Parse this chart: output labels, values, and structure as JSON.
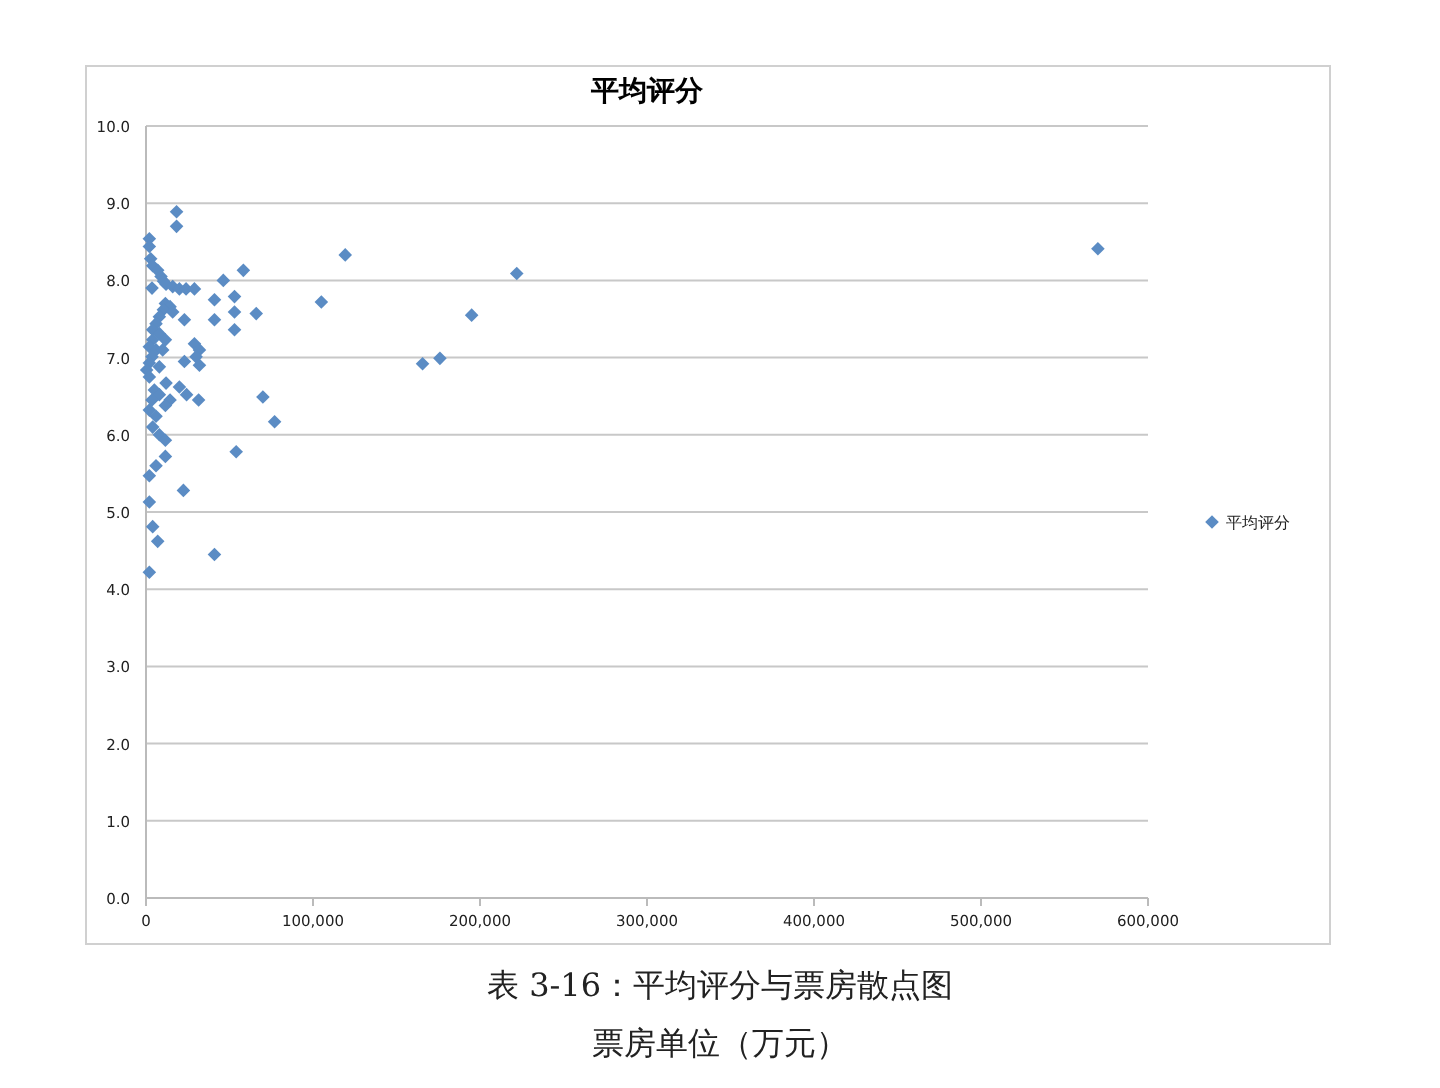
{
  "chart_data": {
    "type": "scatter",
    "title": "平均评分",
    "marker": "diamond",
    "grid": "y",
    "legend": "right",
    "annotations": [
      "表 3-16：平均评分与票房散点图",
      "票房单位（万元）"
    ],
    "xlim": [
      0,
      600000
    ],
    "ylim": [
      0,
      10
    ],
    "xticks": [
      0,
      {
        "value": 100000,
        "label": "100,000"
      },
      {
        "value": 200000,
        "label": "200,000"
      },
      {
        "value": 300000,
        "label": "300,000"
      },
      {
        "value": 400000,
        "label": "400,000"
      },
      {
        "value": 500000,
        "label": "500,000"
      },
      {
        "value": 600000,
        "label": "600,000"
      }
    ],
    "yticks": [
      {
        "value": 0,
        "label": "0.0"
      },
      {
        "value": 1,
        "label": "1.0"
      },
      {
        "value": 2,
        "label": "2.0"
      },
      {
        "value": 3,
        "label": "3.0"
      },
      {
        "value": 4,
        "label": "4.0"
      },
      {
        "value": 5,
        "label": "5.0"
      },
      {
        "value": 6,
        "label": "6.0"
      },
      {
        "value": 7,
        "label": "7.0"
      },
      {
        "value": 8,
        "label": "8.0"
      },
      {
        "value": 9,
        "label": "9.0"
      },
      {
        "value": 10,
        "label": "10.0"
      }
    ],
    "series": [
      {
        "name": "平均评分",
        "color": "#5b8cc4",
        "x": [
          18300,
          18300,
          2000,
          2000,
          2800,
          4000,
          7000,
          9000,
          10500,
          12000,
          16000,
          20000,
          24000,
          29000,
          3600,
          46300,
          58300,
          105000,
          41000,
          53000,
          53000,
          66000,
          41000,
          53000,
          23000,
          11600,
          14400,
          10400,
          16000,
          8000,
          6000,
          4000,
          8000,
          4000,
          2000,
          6000,
          10000,
          3600,
          29000,
          32000,
          30000,
          11600,
          8000,
          2000,
          400,
          23000,
          32000,
          2000,
          12000,
          5000,
          20000,
          8000,
          24300,
          70000,
          3600,
          14400,
          31500,
          2000,
          11600,
          6000,
          77000,
          4000,
          8000,
          11600,
          11600,
          6000,
          54000,
          22400,
          2000,
          2000,
          4000,
          7000,
          41000,
          2000,
          119300,
          165600,
          176000,
          195000,
          222000,
          570000
        ],
        "values": [
          8.89,
          8.7,
          8.54,
          8.44,
          8.28,
          8.19,
          8.13,
          8.05,
          7.99,
          7.95,
          7.92,
          7.89,
          7.89,
          7.89,
          7.9,
          8.0,
          8.13,
          7.72,
          7.75,
          7.79,
          7.59,
          7.57,
          7.49,
          7.36,
          7.49,
          7.7,
          7.66,
          7.62,
          7.59,
          7.53,
          7.44,
          7.36,
          7.31,
          7.23,
          7.14,
          7.1,
          7.1,
          7.01,
          7.18,
          7.1,
          7.01,
          7.23,
          6.88,
          6.93,
          6.84,
          6.95,
          6.9,
          6.75,
          6.67,
          6.58,
          6.62,
          6.52,
          6.52,
          6.49,
          6.45,
          6.45,
          6.45,
          6.32,
          6.38,
          6.24,
          6.17,
          6.1,
          6.0,
          5.93,
          5.72,
          5.6,
          5.78,
          5.28,
          5.47,
          5.13,
          4.81,
          4.62,
          4.45,
          4.22,
          8.33,
          6.92,
          6.99,
          7.55,
          8.09,
          8.41
        ]
      }
    ]
  }
}
